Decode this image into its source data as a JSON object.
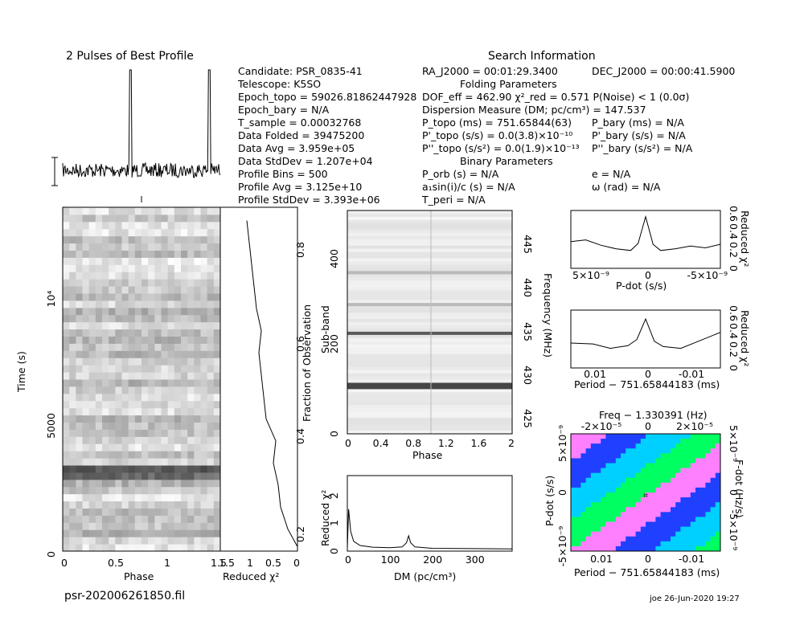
{
  "colors": {
    "ink": "#000000",
    "bg": "#ffffff",
    "colormap": [
      "#ffffff",
      "#ff80ff",
      "#2040ff",
      "#00d0ff",
      "#00ff60"
    ]
  },
  "header": {
    "profile_title": "2 Pulses of Best Profile",
    "search_title": "Search Information",
    "filename": "psr-202006261850.fil",
    "footer": "joe 26-Jun-2020 19:27"
  },
  "info_left": [
    "Candidate:  PSR_0835-41",
    "Telescope:  K5SO",
    "Epoch_topo = 59026.81862447928",
    "Epoch_bary = N/A",
    "T_sample          =  0.00032768",
    "Data Folded       =  39475200",
    "Data Avg           =  3.959e+05",
    "Data StdDev      =  1.207e+04",
    "Profile Bins      =  500",
    "Profile Avg        =  3.125e+10",
    "Profile StdDev   =  3.393e+06"
  ],
  "info_mid": [
    "RA_J2000 = 00:01:29.3400",
    "Folding Parameters",
    "DOF_eff = 462.90  χ²_red = 0.571  P(Noise) < 1   (0.0σ)",
    "Dispersion Measure (DM; pc/cm³) = 147.537",
    "P_topo (ms)  =  751.65844(63)",
    "P'_topo (s/s) = 0.0(3.8)×10⁻¹⁰",
    "P''_topo (s/s²) = 0.0(1.9)×10⁻¹³",
    "Binary Parameters",
    "P_orb (s) = N/A",
    "a₁sin(i)/c (s) = N/A",
    "T_peri = N/A"
  ],
  "info_right": [
    "DEC_J2000 = 00:00:41.5900",
    "P_bary (ms) = N/A",
    "P'_bary (s/s) = N/A",
    "P''_bary (s/s²) = N/A",
    "e = N/A",
    "ω (rad) = N/A"
  ],
  "chart_data": [
    {
      "type": "line",
      "name": "pulse_profile",
      "title": "2 Pulses of Best Profile",
      "x_range": [
        0,
        2
      ],
      "peaks_at_phase": [
        0.86,
        1.86
      ],
      "peak_relative_height": 1.0
    },
    {
      "type": "heatmap",
      "name": "time_vs_phase",
      "xlabel": "Phase",
      "ylabel": "Time (s)",
      "x_ticks": [
        "0",
        "0.5",
        "1",
        "1.5"
      ],
      "y_ticks": [
        "0",
        "5000",
        "10⁴"
      ],
      "ylim": [
        0,
        13500
      ],
      "xlim": [
        0,
        1.5
      ]
    },
    {
      "type": "line",
      "name": "reduced_chi2_vs_fraction",
      "xlabel": "Reduced χ²",
      "ylabel": "Fraction of Observation",
      "x_ticks": [
        "1.5",
        "1",
        "0.5",
        "0"
      ],
      "y_ticks": [
        "0.2",
        "0.4",
        "0.6",
        "0.8"
      ],
      "values": [
        [
          0.0,
          0.16
        ],
        [
          0.2,
          0.2
        ],
        [
          0.35,
          0.25
        ],
        [
          0.4,
          0.3
        ],
        [
          0.5,
          0.35
        ],
        [
          0.45,
          0.4
        ],
        [
          0.65,
          0.45
        ],
        [
          0.7,
          0.5
        ],
        [
          0.75,
          0.55
        ],
        [
          0.8,
          0.6
        ],
        [
          0.75,
          0.65
        ],
        [
          0.85,
          0.7
        ],
        [
          0.9,
          0.75
        ],
        [
          0.95,
          0.8
        ],
        [
          1.0,
          0.85
        ],
        [
          1.05,
          0.9
        ]
      ]
    },
    {
      "type": "heatmap",
      "name": "subband_vs_phase",
      "xlabel": "Phase",
      "ylabel": "Sub-band",
      "y2label": "Frequency (MHz)",
      "x_ticks": [
        "0",
        "0.4",
        "0.8",
        "1.2",
        "1.6",
        "2"
      ],
      "y_ticks": [
        "0",
        "200",
        "400"
      ],
      "y2_ticks": [
        "425",
        "430",
        "435",
        "440",
        "445"
      ]
    },
    {
      "type": "line",
      "name": "dm_curve",
      "xlabel": "DM (pc/cm³)",
      "ylabel": "Reduced χ²",
      "x_ticks": [
        "0",
        "100",
        "200",
        "300"
      ],
      "y_ticks": [
        "0",
        "1",
        "2"
      ],
      "xlim": [
        0,
        390
      ],
      "ylim": [
        0,
        2.7
      ],
      "x": [
        0,
        3,
        8,
        15,
        30,
        60,
        100,
        130,
        140,
        145,
        150,
        160,
        200,
        300,
        390
      ],
      "y": [
        0.1,
        1.5,
        0.7,
        0.35,
        0.2,
        0.14,
        0.12,
        0.15,
        0.3,
        0.55,
        0.3,
        0.15,
        0.1,
        0.09,
        0.08
      ]
    },
    {
      "type": "line",
      "name": "pdot_curve",
      "xlabel": "P-dot (s/s)",
      "ylabel": "Reduced χ²",
      "x_ticks": [
        "5×10⁻⁹",
        "0",
        "-5×10⁻⁹"
      ],
      "y_ticks": [
        "0",
        "0.2",
        "0.4",
        "0.6"
      ],
      "ylim": [
        0,
        0.65
      ],
      "x": [
        5,
        4,
        3,
        2,
        1,
        0.5,
        0,
        -0.5,
        -1,
        -2,
        -3,
        -4,
        -5
      ],
      "y": [
        0.3,
        0.32,
        0.26,
        0.22,
        0.2,
        0.28,
        0.58,
        0.27,
        0.2,
        0.22,
        0.25,
        0.23,
        0.27
      ]
    },
    {
      "type": "line",
      "name": "period_curve",
      "xlabel": "Period - 751.65844183 (ms)",
      "ylabel": "Reduced χ²",
      "x_ticks": [
        "0.01",
        "0",
        "-0.01"
      ],
      "y_ticks": [
        "0",
        "0.2",
        "0.4",
        "0.6"
      ],
      "ylim": [
        0,
        0.65
      ],
      "x": [
        0.017,
        0.012,
        0.008,
        0.004,
        0.002,
        0,
        -0.002,
        -0.004,
        -0.008,
        -0.012,
        -0.017
      ],
      "y": [
        0.28,
        0.27,
        0.22,
        0.25,
        0.32,
        0.55,
        0.3,
        0.24,
        0.22,
        0.3,
        0.4
      ]
    },
    {
      "type": "heatmap",
      "name": "period_pdot_plane",
      "title": "Freq - 1.330391 (Hz)",
      "xlabel": "Period - 751.65844183 (ms)",
      "ylabel": "P-dot (s/s)",
      "y2label": "F-dot (Hz/s)",
      "x_ticks": [
        "0.01",
        "0",
        "-0.01"
      ],
      "x2_ticks": [
        "-2×10⁻⁵",
        "0",
        "2×10⁻⁵"
      ],
      "y_ticks": [
        "5×10⁻⁹",
        "0",
        "-5×10⁻⁹"
      ],
      "y2_ticks": [
        "5×10⁻⁹",
        "0",
        "-5×10⁻⁹"
      ]
    }
  ],
  "labels": {
    "phase": "Phase",
    "time_s": "Time (s)",
    "reduced_chi2": "Reduced χ²",
    "fraction_obs": "Fraction of Observation",
    "sub_band": "Sub-band",
    "frequency": "Frequency (MHz)",
    "dm": "DM (pc/cm³)",
    "pdot": "P-dot (s/s)",
    "period": "Period − 751.65844183 (ms)",
    "freq_title": "Freq − 1.330391 (Hz)",
    "fdot": "F-dot (Hz/s)"
  }
}
